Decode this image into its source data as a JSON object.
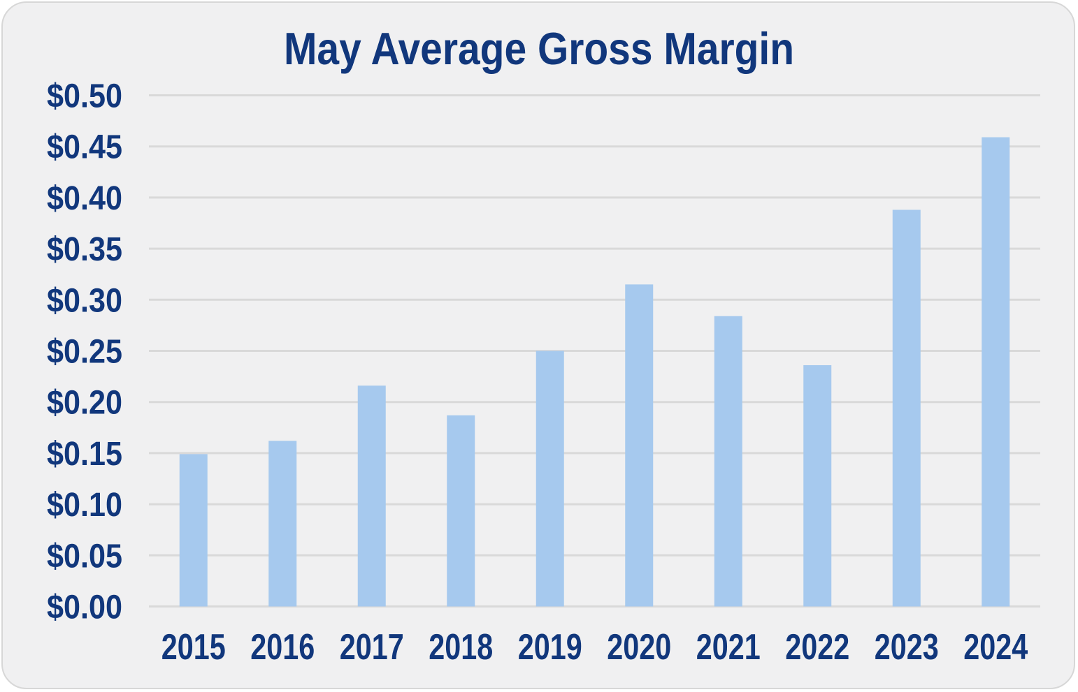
{
  "window": {
    "background_color": "#ffffff"
  },
  "card": {
    "background_color": "#f0f0f1",
    "border_color": "#d7d7d7"
  },
  "chart_data": {
    "type": "bar",
    "title": "May Average Gross Margin",
    "categories": [
      "2015",
      "2016",
      "2017",
      "2018",
      "2019",
      "2020",
      "2021",
      "2022",
      "2023",
      "2024"
    ],
    "values": [
      0.149,
      0.162,
      0.216,
      0.187,
      0.25,
      0.315,
      0.284,
      0.236,
      0.388,
      0.459
    ],
    "series_name": "May Average Gross Margin",
    "xlabel": "",
    "ylabel": "",
    "ylim": [
      0.0,
      0.5
    ],
    "y_tick_step": 0.05,
    "y_ticks": [
      {
        "label": "$0.00",
        "value": 0.0
      },
      {
        "label": "$0.05",
        "value": 0.05
      },
      {
        "label": "$0.10",
        "value": 0.1
      },
      {
        "label": "$0.15",
        "value": 0.15
      },
      {
        "label": "$0.20",
        "value": 0.2
      },
      {
        "label": "$0.25",
        "value": 0.25
      },
      {
        "label": "$0.30",
        "value": 0.3
      },
      {
        "label": "$0.35",
        "value": 0.35
      },
      {
        "label": "$0.40",
        "value": 0.4
      },
      {
        "label": "$0.45",
        "value": 0.45
      },
      {
        "label": "$0.50",
        "value": 0.5
      }
    ],
    "grid": true,
    "legend": false,
    "bar_color": "#a6c9ee",
    "text_color": "#11377c",
    "gridline_color": "#d9d9d9"
  }
}
